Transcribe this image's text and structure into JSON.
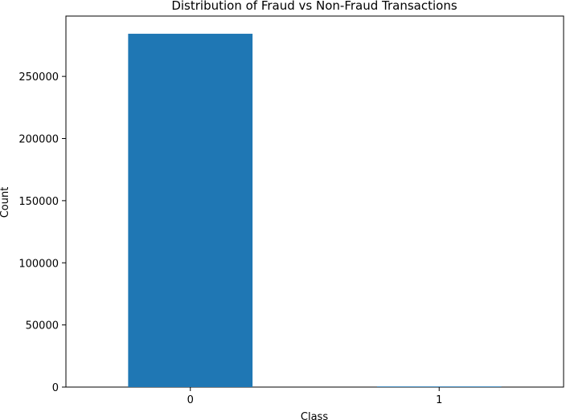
{
  "chart_data": {
    "type": "bar",
    "title": "Distribution of Fraud vs Non-Fraud Transactions",
    "xlabel": "Class",
    "ylabel": "Count",
    "categories": [
      "0",
      "1"
    ],
    "values": [
      284315,
      492
    ],
    "ylim": [
      0,
      298552
    ],
    "yticks": [
      0,
      50000,
      100000,
      150000,
      200000,
      250000
    ],
    "ytick_labels": [
      "0",
      "50000",
      "100000",
      "150000",
      "200000",
      "250000"
    ],
    "grid": false,
    "legend": "none",
    "bar_color": "#1f77b4"
  }
}
